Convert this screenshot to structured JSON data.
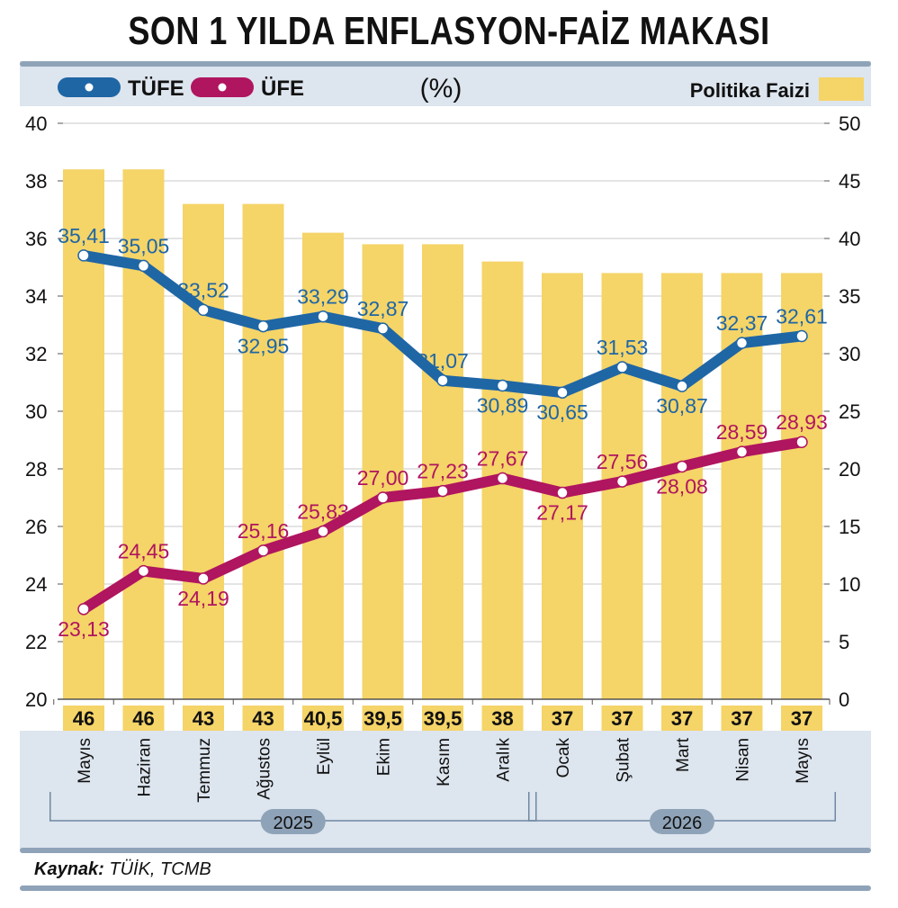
{
  "title": "SON 1 YILDA ENFLASYON-FAİZ MAKASI",
  "unit": "(%)",
  "source": {
    "label": "Kaynak:",
    "text": "TÜİK, TCMB"
  },
  "colors": {
    "tufe": "#1f66a5",
    "ufe": "#b0155f",
    "policy": "#f5d468",
    "panel": "#dde5ee",
    "frame": "#8fa3b8"
  },
  "chart_data": {
    "type": "bar+line",
    "categories": [
      "Mayıs",
      "Haziran",
      "Temmuz",
      "Ağustos",
      "Eylül",
      "Ekim",
      "Kasım",
      "Aralık",
      "Ocak",
      "Şubat",
      "Mart",
      "Nisan",
      "Mayıs"
    ],
    "years": [
      {
        "label": "2025",
        "from": 0,
        "to": 7
      },
      {
        "label": "2026",
        "from": 8,
        "to": 12
      }
    ],
    "series": [
      {
        "name": "TÜFE",
        "type": "line",
        "axis": "left",
        "values": [
          35.41,
          35.05,
          33.52,
          32.95,
          33.29,
          32.87,
          31.07,
          30.89,
          30.65,
          31.53,
          30.87,
          32.37,
          32.61
        ],
        "labels": [
          "35,41",
          "35,05",
          "33,52",
          "32,95",
          "33,29",
          "32,87",
          "31,07",
          "30,89",
          "30,65",
          "31,53",
          "30,87",
          "32,37",
          "32,61"
        ]
      },
      {
        "name": "ÜFE",
        "type": "line",
        "axis": "left",
        "values": [
          23.13,
          24.45,
          24.19,
          25.16,
          25.83,
          27.0,
          27.23,
          27.67,
          27.17,
          27.56,
          28.08,
          28.59,
          28.93
        ],
        "labels": [
          "23,13",
          "24,45",
          "24,19",
          "25,16",
          "25,83",
          "27,00",
          "27,23",
          "27,67",
          "27,17",
          "27,56",
          "28,08",
          "28,59",
          "28,93"
        ]
      },
      {
        "name": "Politika Faizi",
        "type": "bar",
        "axis": "right",
        "values": [
          46,
          46,
          43,
          43,
          40.5,
          39.5,
          39.5,
          38,
          37,
          37,
          37,
          37,
          37
        ],
        "labels": [
          "46",
          "46",
          "43",
          "43",
          "40,5",
          "39,5",
          "39,5",
          "38",
          "37",
          "37",
          "37",
          "37",
          "37"
        ]
      }
    ],
    "left_axis": {
      "min": 20,
      "max": 40,
      "ticks": [
        "20",
        "22",
        "24",
        "26",
        "28",
        "30",
        "32",
        "34",
        "36",
        "38",
        "40"
      ]
    },
    "right_axis": {
      "min": 0,
      "max": 50,
      "ticks": [
        "0",
        "5",
        "10",
        "15",
        "20",
        "25",
        "30",
        "35",
        "40",
        "45",
        "50"
      ]
    },
    "grid": true,
    "legend_placement": "top"
  }
}
